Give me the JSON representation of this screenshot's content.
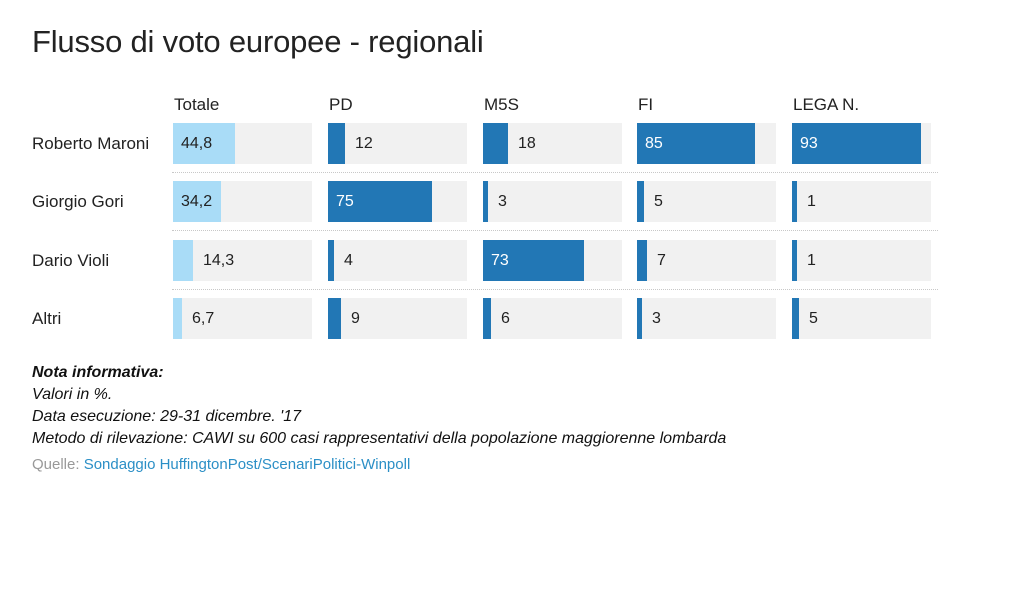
{
  "title": "Flusso di voto europee - regionali",
  "chart_data": {
    "type": "table",
    "title": "Flusso di voto europee - regionali",
    "columns": [
      "Totale",
      "PD",
      "M5S",
      "FI",
      "LEGA N."
    ],
    "rows": [
      {
        "label": "Roberto Maroni",
        "values": [
          "44,8",
          "12",
          "18",
          "85",
          "93"
        ],
        "numeric": [
          44.8,
          12,
          18,
          85,
          93
        ]
      },
      {
        "label": "Giorgio Gori",
        "values": [
          "34,2",
          "75",
          "3",
          "5",
          "1"
        ],
        "numeric": [
          34.2,
          75,
          3,
          5,
          1
        ]
      },
      {
        "label": "Dario Violi",
        "values": [
          "14,3",
          "4",
          "73",
          "7",
          "1"
        ],
        "numeric": [
          14.3,
          4,
          73,
          7,
          1
        ]
      },
      {
        "label": "Altri",
        "values": [
          "6,7",
          "9",
          "6",
          "3",
          "5"
        ],
        "numeric": [
          6.7,
          9,
          6,
          3,
          5
        ]
      }
    ],
    "value_range": [
      0,
      100
    ],
    "colors": {
      "totale_bar": "#a9dcf7",
      "party_bar": "#2277b5",
      "cell_background": "#f1f1f1"
    }
  },
  "notes": {
    "heading": "Nota informativa:",
    "lines": [
      "Valori in %.",
      "Data esecuzione: 29-31 dicembre. '17",
      "Metodo di rilevazione: CAWI su 600 casi rappresentativi della popolazione maggiorenne lombarda"
    ]
  },
  "source": {
    "label": "Quelle:",
    "text": "Sondaggio HuffingtonPost/ScenariPolitici-Winpoll"
  }
}
